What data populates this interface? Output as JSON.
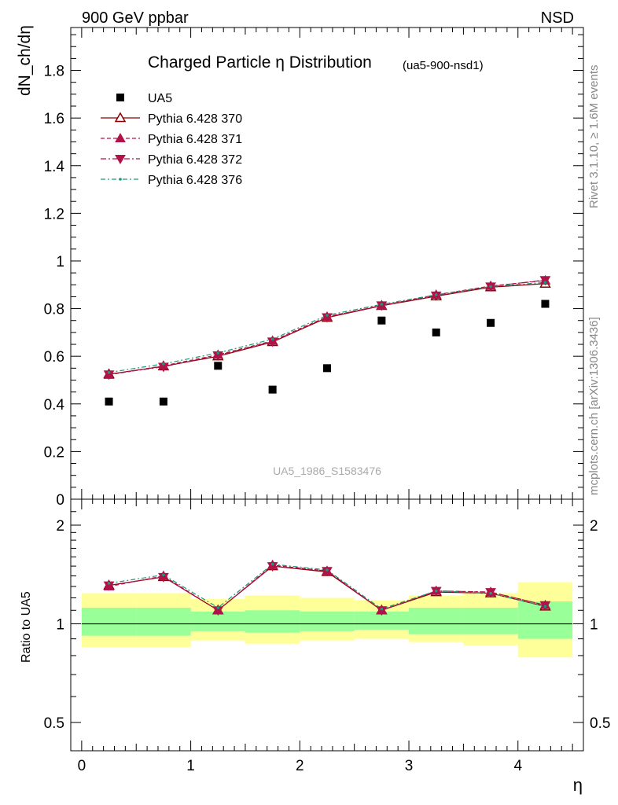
{
  "header": {
    "left": "900 GeV ppbar",
    "right": "NSD"
  },
  "side_labels": {
    "rivet": "Rivet 3.1.10, ≥ 1.6M events",
    "mcplots": "mcplots.cern.ch [arXiv:1306.3436]"
  },
  "colors": {
    "data": "#000000",
    "p370": "#8b0000",
    "p371": "#b0124a",
    "p372": "#b0124a",
    "p376": "#1a9a7a",
    "band_inner": "#99ff99",
    "band_outer": "#ffff99"
  },
  "chart_data": [
    {
      "type": "scatter",
      "title": "Charged Particle η Distribution",
      "subtitle": "(ua5-900-nsd1)",
      "watermark": "UA5_1986_S1583476",
      "xlabel": "",
      "ylabel": "dN_ch/dη",
      "xlim": [
        -0.1,
        4.6
      ],
      "ylim": [
        0,
        1.98
      ],
      "y_ticks": [
        {
          "v": 0,
          "label": "0"
        },
        {
          "v": 0.2,
          "label": "0.2"
        },
        {
          "v": 0.4,
          "label": "0.4"
        },
        {
          "v": 0.6,
          "label": "0.6"
        },
        {
          "v": 0.8,
          "label": "0.8"
        },
        {
          "v": 1.0,
          "label": "1"
        },
        {
          "v": 1.2,
          "label": "1.2"
        },
        {
          "v": 1.4,
          "label": "1.4"
        },
        {
          "v": 1.6,
          "label": "1.6"
        },
        {
          "v": 1.8,
          "label": "1.8"
        }
      ],
      "legend_position": "top-left",
      "x": [
        0.25,
        0.75,
        1.25,
        1.75,
        2.25,
        2.75,
        3.25,
        3.75,
        4.25
      ],
      "series": [
        {
          "name": "UA5",
          "marker": "square",
          "line": "none",
          "values": [
            0.41,
            0.41,
            0.56,
            0.46,
            0.55,
            0.75,
            0.7,
            0.74,
            0.82
          ]
        },
        {
          "name": "Pythia 6.428 370",
          "marker": "triangle-up-open",
          "line": "solid",
          "values": [
            0.525,
            0.558,
            0.6,
            0.66,
            0.762,
            0.812,
            0.852,
            0.89,
            0.905
          ]
        },
        {
          "name": "Pythia 6.428 371",
          "marker": "triangle-up",
          "line": "dashed",
          "values": [
            0.522,
            0.56,
            0.606,
            0.665,
            0.766,
            0.813,
            0.858,
            0.895,
            0.918
          ]
        },
        {
          "name": "Pythia 6.428 372",
          "marker": "triangle-down",
          "line": "dashdot",
          "values": [
            0.524,
            0.556,
            0.604,
            0.662,
            0.764,
            0.814,
            0.855,
            0.893,
            0.92
          ]
        },
        {
          "name": "Pythia 6.428 376",
          "marker": "dot",
          "line": "dashdot",
          "values": [
            0.532,
            0.568,
            0.614,
            0.672,
            0.772,
            0.818,
            0.858,
            0.893,
            0.91
          ]
        }
      ]
    },
    {
      "type": "line",
      "title": "",
      "xlabel": "η",
      "ylabel": "Ratio to UA5",
      "xlim": [
        -0.1,
        4.6
      ],
      "ylim": [
        0.41,
        2.4
      ],
      "y_scale": "log",
      "x_ticks": [
        {
          "v": 0,
          "label": "0"
        },
        {
          "v": 1,
          "label": "1"
        },
        {
          "v": 2,
          "label": "2"
        },
        {
          "v": 3,
          "label": "3"
        },
        {
          "v": 4,
          "label": "4"
        }
      ],
      "y_ticks": [
        {
          "v": 0.5,
          "label": "0.5"
        },
        {
          "v": 1,
          "label": "1"
        },
        {
          "v": 2,
          "label": "2"
        }
      ],
      "reference_line": 1,
      "bands": {
        "edges": [
          0,
          0.5,
          1,
          1.5,
          2,
          2.5,
          3,
          3.5,
          4,
          4.5
        ],
        "inner_low": [
          0.92,
          0.92,
          0.95,
          0.94,
          0.95,
          0.96,
          0.93,
          0.93,
          0.9
        ],
        "inner_high": [
          1.12,
          1.12,
          1.09,
          1.1,
          1.09,
          1.09,
          1.12,
          1.12,
          1.17
        ],
        "outer_low": [
          0.85,
          0.85,
          0.89,
          0.87,
          0.89,
          0.9,
          0.88,
          0.86,
          0.79
        ],
        "outer_high": [
          1.24,
          1.24,
          1.19,
          1.22,
          1.2,
          1.18,
          1.22,
          1.24,
          1.34
        ]
      },
      "x": [
        0.25,
        0.75,
        1.25,
        1.75,
        2.25,
        2.75,
        3.25,
        3.75,
        4.25
      ],
      "series": [
        {
          "name": "Pythia 6.428 370",
          "values": [
            1.31,
            1.39,
            1.1,
            1.5,
            1.44,
            1.1,
            1.25,
            1.24,
            1.13
          ]
        },
        {
          "name": "Pythia 6.428 371",
          "values": [
            1.3,
            1.4,
            1.1,
            1.51,
            1.45,
            1.1,
            1.26,
            1.25,
            1.14
          ]
        },
        {
          "name": "Pythia 6.428 372",
          "values": [
            1.31,
            1.39,
            1.1,
            1.5,
            1.45,
            1.1,
            1.26,
            1.25,
            1.14
          ]
        },
        {
          "name": "Pythia 6.428 376",
          "values": [
            1.33,
            1.41,
            1.12,
            1.52,
            1.46,
            1.11,
            1.26,
            1.24,
            1.13
          ]
        }
      ]
    }
  ]
}
